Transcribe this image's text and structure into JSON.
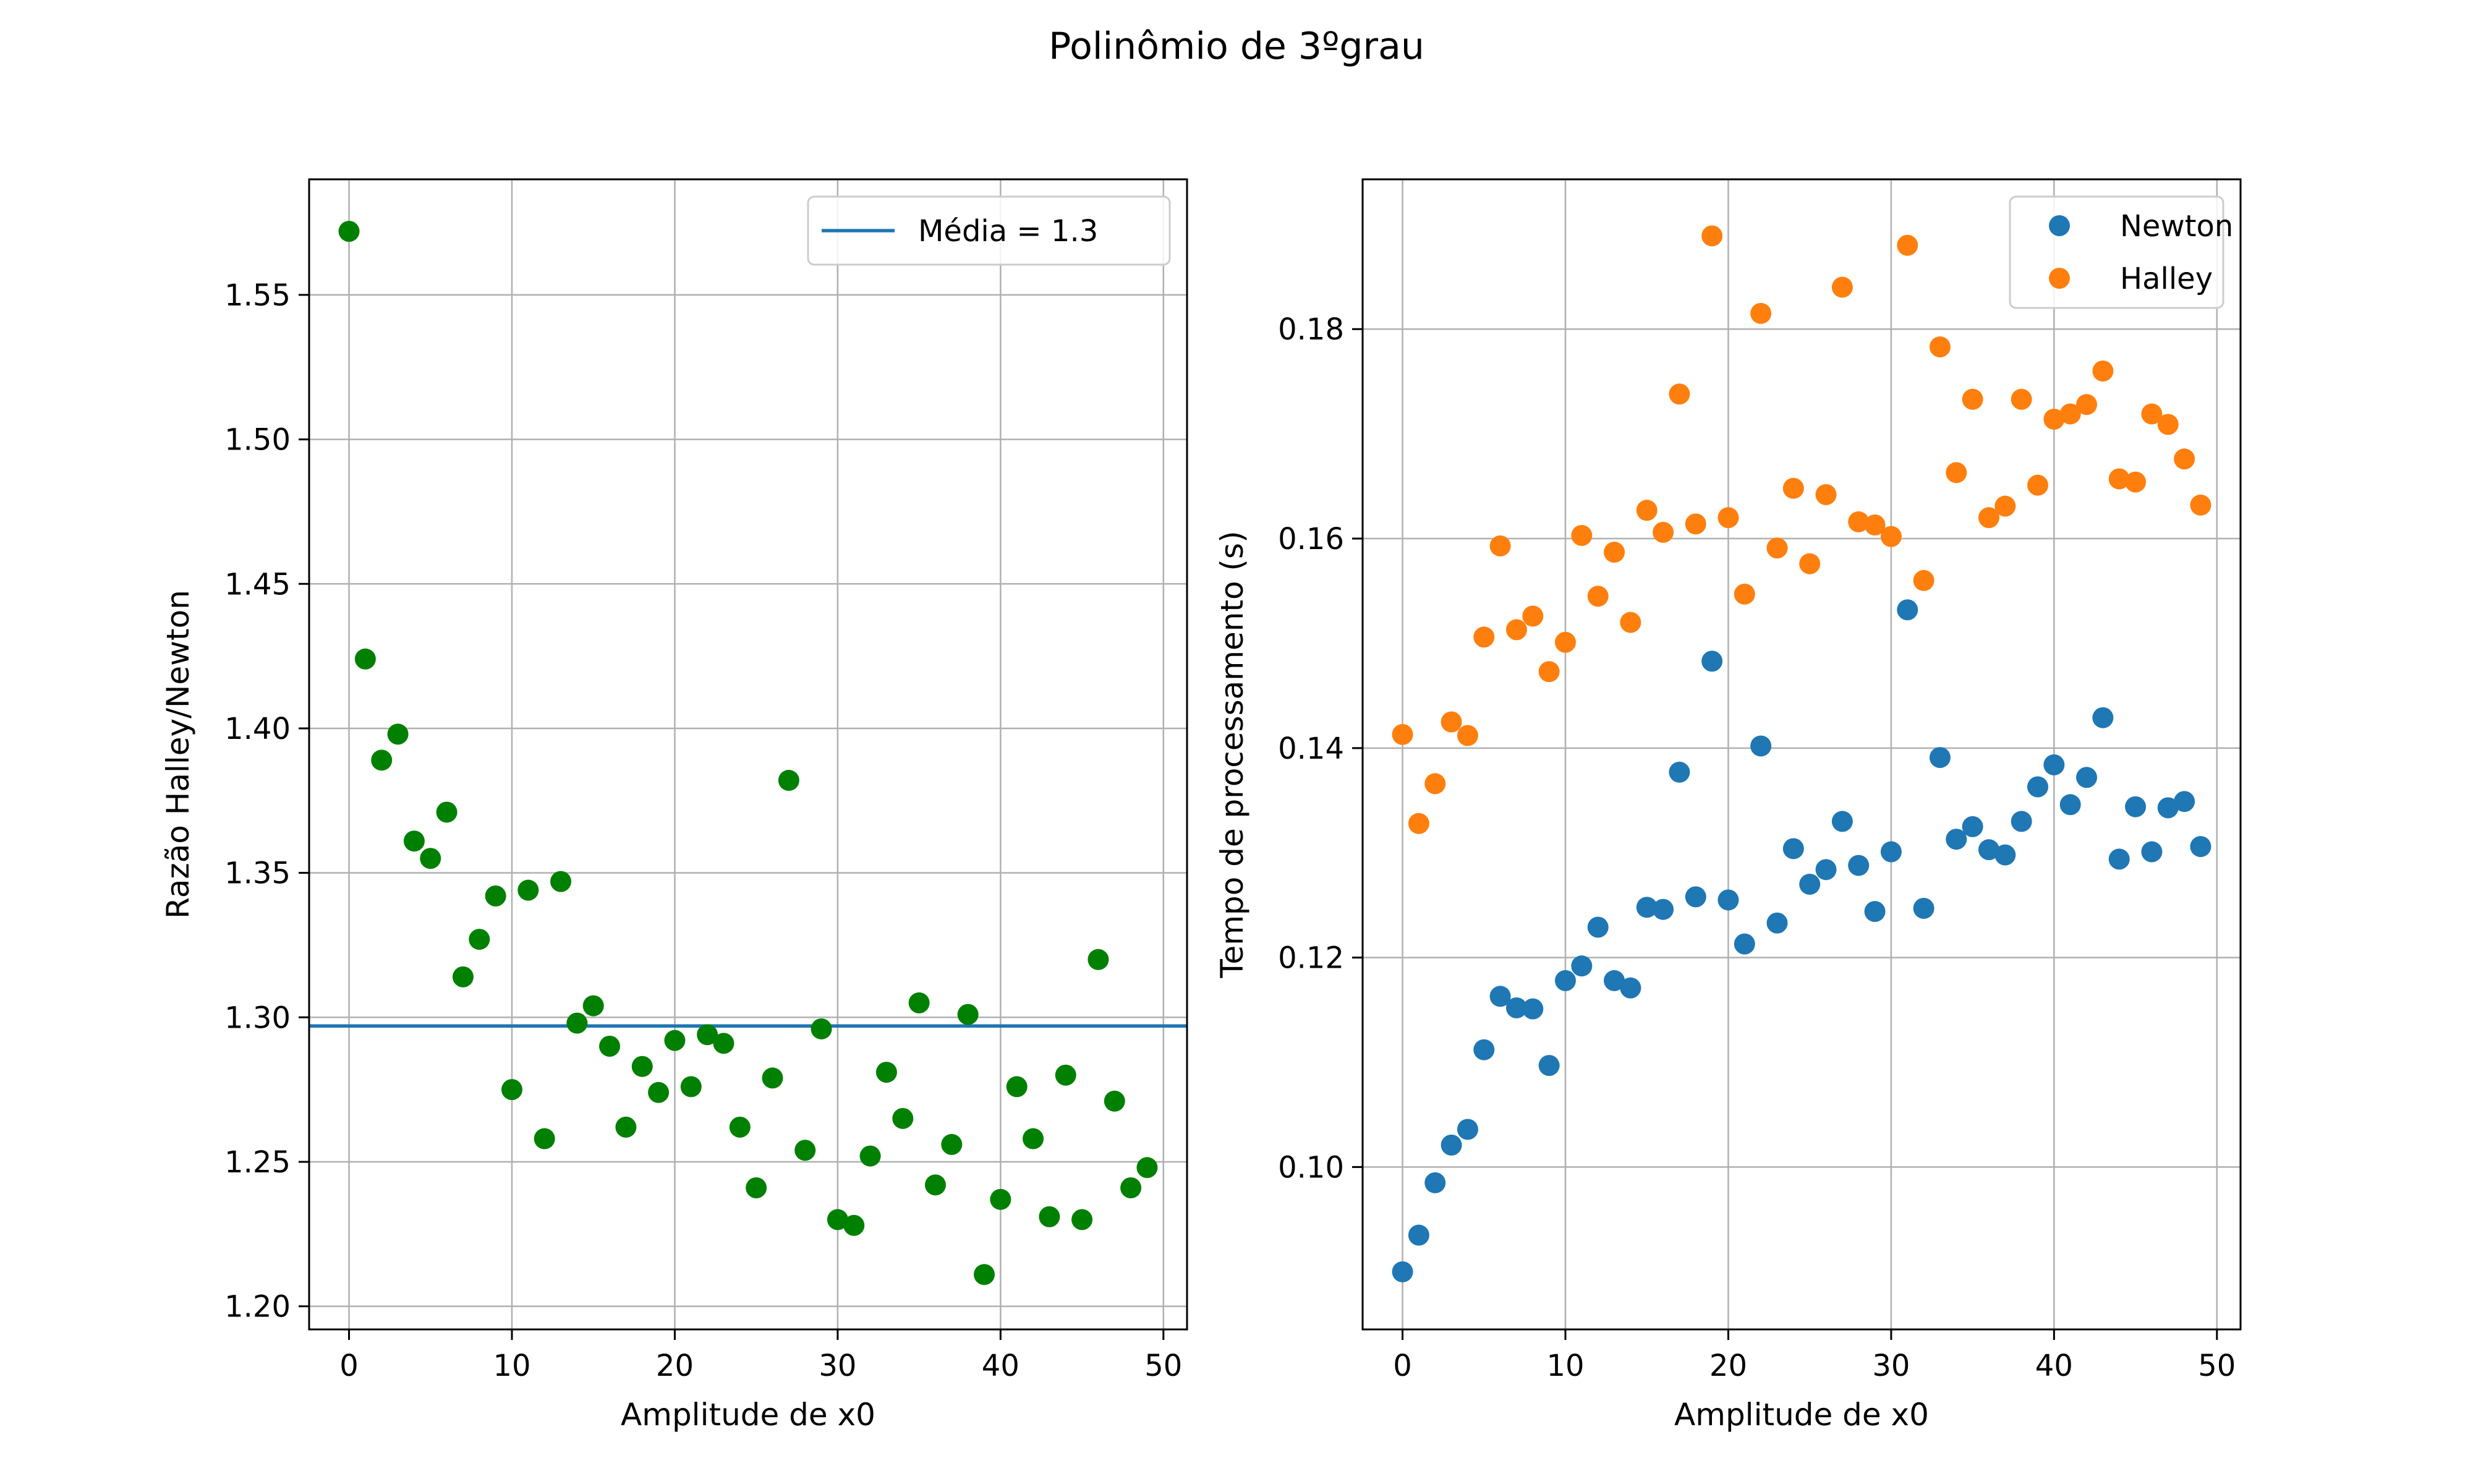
{
  "figure": {
    "suptitle": "Polinômio de 3ºgrau"
  },
  "chart_data": [
    {
      "type": "scatter",
      "title": "",
      "xlabel": "Amplitude de x0",
      "ylabel": "Razão Halley/Newton",
      "xlim": [
        -2.45,
        51.45
      ],
      "ylim": [
        1.192,
        1.59
      ],
      "xticks": [
        0,
        10,
        20,
        30,
        40,
        50
      ],
      "yticks": [
        1.2,
        1.25,
        1.3,
        1.35,
        1.4,
        1.45,
        1.5,
        1.55
      ],
      "ytick_labels": [
        "1.20",
        "1.25",
        "1.30",
        "1.35",
        "1.40",
        "1.45",
        "1.50",
        "1.55"
      ],
      "grid": true,
      "legend_position": "top-right",
      "hline": {
        "name": "Média = 1.3",
        "value": 1.297,
        "color": "#1f77b4"
      },
      "series": [
        {
          "color": "#008000",
          "x": [
            0,
            1,
            2,
            3,
            4,
            5,
            6,
            7,
            8,
            9,
            10,
            11,
            12,
            13,
            14,
            15,
            16,
            17,
            18,
            19,
            20,
            21,
            22,
            23,
            24,
            25,
            26,
            27,
            28,
            29,
            30,
            31,
            32,
            33,
            34,
            35,
            36,
            37,
            38,
            39,
            40,
            41,
            42,
            43,
            44,
            45,
            46,
            47,
            48,
            49
          ],
          "y": [
            1.572,
            1.424,
            1.389,
            1.398,
            1.361,
            1.355,
            1.371,
            1.314,
            1.327,
            1.342,
            1.275,
            1.344,
            1.258,
            1.347,
            1.298,
            1.304,
            1.29,
            1.262,
            1.283,
            1.274,
            1.292,
            1.276,
            1.294,
            1.291,
            1.262,
            1.241,
            1.279,
            1.382,
            1.254,
            1.296,
            1.23,
            1.228,
            1.252,
            1.281,
            1.265,
            1.305,
            1.242,
            1.256,
            1.301,
            1.211,
            1.237,
            1.276,
            1.258,
            1.231,
            1.28,
            1.23,
            1.32,
            1.271,
            1.241,
            1.248
          ]
        }
      ]
    },
    {
      "type": "scatter",
      "title": "",
      "xlabel": "Amplitude de x0",
      "ylabel": "Tempo de processamento (s)",
      "xlim": [
        -2.45,
        51.45
      ],
      "ylim": [
        0.0845,
        0.1943
      ],
      "xticks": [
        0,
        10,
        20,
        30,
        40,
        50
      ],
      "yticks": [
        0.1,
        0.12,
        0.14,
        0.16,
        0.18
      ],
      "ytick_labels": [
        "0.10",
        "0.12",
        "0.14",
        "0.16",
        "0.18"
      ],
      "grid": true,
      "legend_position": "top-right",
      "series": [
        {
          "name": "Newton",
          "color": "#1f77b4",
          "x": [
            0,
            1,
            2,
            3,
            4,
            5,
            6,
            7,
            8,
            9,
            10,
            11,
            12,
            13,
            14,
            15,
            16,
            17,
            18,
            19,
            20,
            21,
            22,
            23,
            24,
            25,
            26,
            27,
            28,
            29,
            30,
            31,
            32,
            33,
            34,
            35,
            36,
            37,
            38,
            39,
            40,
            41,
            42,
            43,
            44,
            45,
            46,
            47,
            48,
            49
          ],
          "y": [
            0.09,
            0.0935,
            0.0985,
            0.1021,
            0.1036,
            0.1112,
            0.1163,
            0.1152,
            0.1151,
            0.1097,
            0.1178,
            0.1192,
            0.1229,
            0.1178,
            0.1171,
            0.1248,
            0.1246,
            0.1377,
            0.1258,
            0.1483,
            0.1255,
            0.1213,
            0.1402,
            0.1233,
            0.1304,
            0.127,
            0.1284,
            0.133,
            0.1288,
            0.1244,
            0.1301,
            0.1532,
            0.1247,
            0.1391,
            0.1313,
            0.1325,
            0.1303,
            0.1298,
            0.133,
            0.1363,
            0.1384,
            0.1346,
            0.1372,
            0.1429,
            0.1294,
            0.1344,
            0.1301,
            0.1343,
            0.1349,
            0.1306
          ]
        },
        {
          "name": "Halley",
          "color": "#ff7f0e",
          "x": [
            0,
            1,
            2,
            3,
            4,
            5,
            6,
            7,
            8,
            9,
            10,
            11,
            12,
            13,
            14,
            15,
            16,
            17,
            18,
            19,
            20,
            21,
            22,
            23,
            24,
            25,
            26,
            27,
            28,
            29,
            30,
            31,
            32,
            33,
            34,
            35,
            36,
            37,
            38,
            39,
            40,
            41,
            42,
            43,
            44,
            45,
            46,
            47,
            48,
            49
          ],
          "y": [
            0.1413,
            0.1328,
            0.1366,
            0.1425,
            0.1412,
            0.1506,
            0.1593,
            0.1513,
            0.1526,
            0.1473,
            0.1501,
            0.1603,
            0.1545,
            0.1587,
            0.152,
            0.1627,
            0.1606,
            0.1738,
            0.1614,
            0.1889,
            0.162,
            0.1547,
            0.1815,
            0.1591,
            0.1648,
            0.1576,
            0.1642,
            0.184,
            0.1616,
            0.1613,
            0.1602,
            0.188,
            0.156,
            0.1783,
            0.1663,
            0.1733,
            0.162,
            0.1631,
            0.1733,
            0.1651,
            0.1714,
            0.1719,
            0.1728,
            0.176,
            0.1657,
            0.1654,
            0.1719,
            0.1709,
            0.1676,
            0.1632
          ]
        }
      ]
    }
  ]
}
